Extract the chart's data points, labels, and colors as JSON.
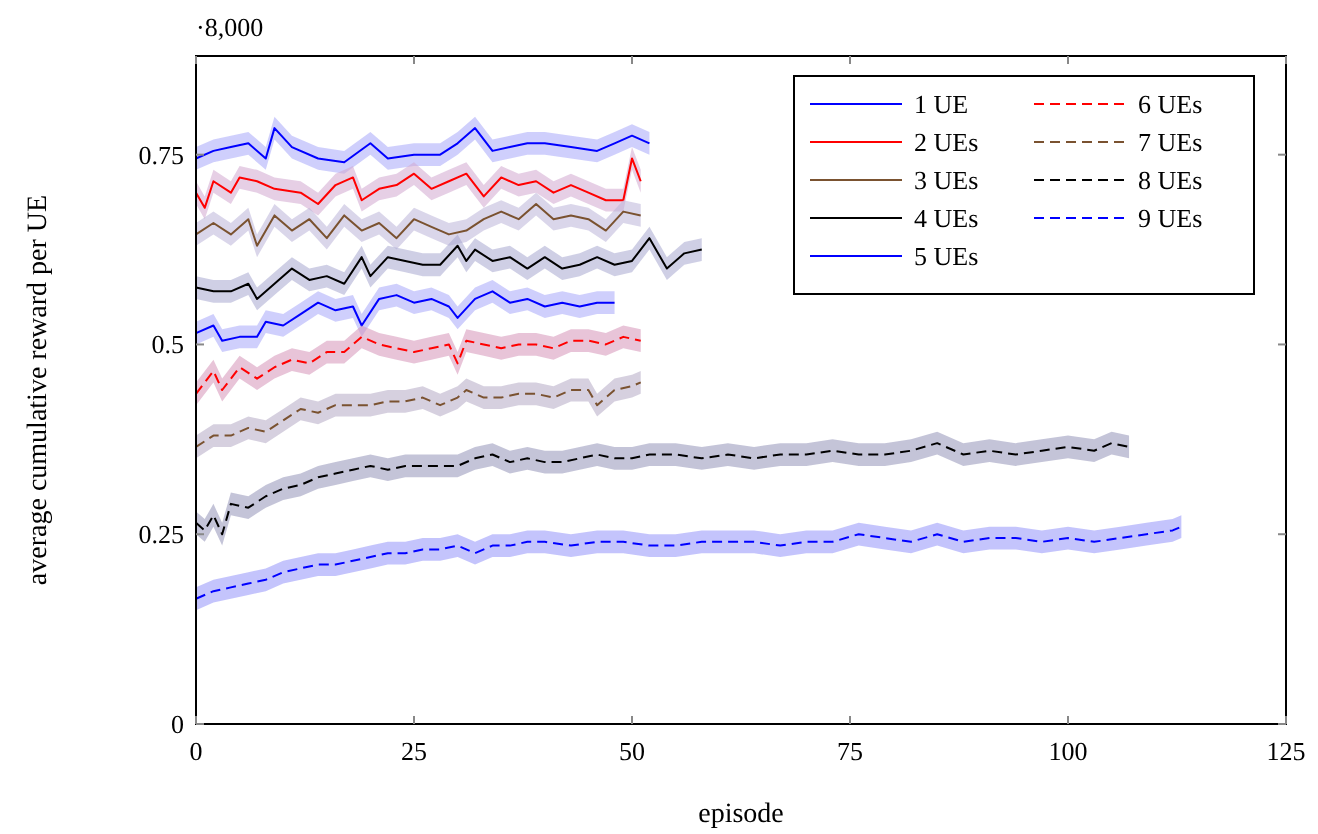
{
  "chart_data": {
    "type": "line",
    "xlabel": "episode",
    "ylabel": "average cumulative reward per UE",
    "annotations": [
      "·8,000"
    ],
    "xlim": [
      0,
      125
    ],
    "xticks": [
      0,
      25,
      50,
      75,
      100,
      125
    ],
    "ylim": [
      0,
      0.88
    ],
    "yticks": [
      0,
      0.25,
      0.5,
      0.75
    ],
    "legend": "top right",
    "series": [
      {
        "name": "1 UE",
        "color": "#0000ff",
        "line_style": "solid",
        "x": [
          0,
          2,
          4,
          6,
          8,
          9,
          11,
          14,
          17,
          20,
          22,
          25,
          28,
          30,
          32,
          34,
          36,
          38,
          40,
          43,
          46,
          48,
          50,
          52
        ],
        "values": [
          0.745,
          0.755,
          0.76,
          0.765,
          0.745,
          0.785,
          0.76,
          0.745,
          0.74,
          0.765,
          0.745,
          0.75,
          0.75,
          0.765,
          0.785,
          0.755,
          0.76,
          0.765,
          0.765,
          0.76,
          0.755,
          0.765,
          0.775,
          0.765
        ],
        "lower": [
          0.73,
          0.74,
          0.745,
          0.75,
          0.73,
          0.77,
          0.745,
          0.73,
          0.725,
          0.75,
          0.73,
          0.735,
          0.735,
          0.75,
          0.77,
          0.74,
          0.745,
          0.75,
          0.75,
          0.745,
          0.74,
          0.75,
          0.76,
          0.75
        ],
        "upper": [
          0.76,
          0.77,
          0.775,
          0.78,
          0.76,
          0.8,
          0.775,
          0.76,
          0.755,
          0.78,
          0.76,
          0.765,
          0.765,
          0.78,
          0.8,
          0.77,
          0.775,
          0.78,
          0.78,
          0.775,
          0.77,
          0.78,
          0.79,
          0.78
        ]
      },
      {
        "name": "2 UEs",
        "color": "#ff0000",
        "line_style": "solid",
        "x": [
          0,
          1,
          2,
          4,
          5,
          7,
          9,
          12,
          14,
          16,
          18,
          19,
          21,
          23,
          25,
          27,
          29,
          31,
          33,
          35,
          37,
          39,
          41,
          43,
          45,
          47,
          49,
          50,
          51
        ],
        "values": [
          0.7,
          0.68,
          0.715,
          0.7,
          0.72,
          0.715,
          0.705,
          0.7,
          0.685,
          0.71,
          0.72,
          0.69,
          0.705,
          0.71,
          0.725,
          0.705,
          0.715,
          0.725,
          0.695,
          0.72,
          0.71,
          0.715,
          0.7,
          0.71,
          0.7,
          0.69,
          0.69,
          0.745,
          0.715
        ],
        "lower": [
          0.685,
          0.665,
          0.7,
          0.685,
          0.705,
          0.7,
          0.69,
          0.685,
          0.67,
          0.695,
          0.705,
          0.675,
          0.69,
          0.695,
          0.71,
          0.69,
          0.7,
          0.71,
          0.68,
          0.705,
          0.695,
          0.7,
          0.685,
          0.695,
          0.685,
          0.675,
          0.675,
          0.73,
          0.7
        ],
        "upper": [
          0.715,
          0.695,
          0.73,
          0.715,
          0.735,
          0.73,
          0.72,
          0.715,
          0.7,
          0.725,
          0.735,
          0.705,
          0.72,
          0.725,
          0.74,
          0.72,
          0.73,
          0.74,
          0.71,
          0.735,
          0.725,
          0.73,
          0.715,
          0.725,
          0.715,
          0.705,
          0.705,
          0.76,
          0.73
        ]
      },
      {
        "name": "3 UEs",
        "color": "#7a5230",
        "line_style": "solid",
        "x": [
          0,
          2,
          4,
          6,
          7,
          9,
          11,
          13,
          15,
          17,
          19,
          21,
          23,
          25,
          27,
          29,
          31,
          33,
          35,
          37,
          39,
          41,
          43,
          45,
          47,
          49,
          51
        ],
        "values": [
          0.645,
          0.66,
          0.645,
          0.665,
          0.63,
          0.67,
          0.65,
          0.665,
          0.64,
          0.67,
          0.65,
          0.66,
          0.64,
          0.665,
          0.655,
          0.645,
          0.65,
          0.665,
          0.675,
          0.665,
          0.685,
          0.665,
          0.67,
          0.665,
          0.65,
          0.675,
          0.67
        ],
        "lower": [
          0.63,
          0.645,
          0.63,
          0.65,
          0.615,
          0.655,
          0.635,
          0.65,
          0.625,
          0.655,
          0.635,
          0.645,
          0.625,
          0.65,
          0.64,
          0.63,
          0.635,
          0.65,
          0.66,
          0.65,
          0.67,
          0.65,
          0.655,
          0.65,
          0.635,
          0.66,
          0.655
        ],
        "upper": [
          0.66,
          0.675,
          0.66,
          0.68,
          0.645,
          0.685,
          0.665,
          0.68,
          0.655,
          0.685,
          0.665,
          0.675,
          0.655,
          0.68,
          0.67,
          0.66,
          0.665,
          0.68,
          0.69,
          0.68,
          0.7,
          0.68,
          0.685,
          0.68,
          0.665,
          0.69,
          0.685
        ]
      },
      {
        "name": "4 UEs",
        "color": "#000000",
        "line_style": "solid",
        "x": [
          0,
          2,
          4,
          6,
          7,
          9,
          11,
          13,
          15,
          17,
          19,
          20,
          22,
          24,
          26,
          28,
          30,
          31,
          32,
          34,
          36,
          38,
          40,
          42,
          44,
          46,
          48,
          50,
          52,
          54,
          56,
          58
        ],
        "values": [
          0.575,
          0.57,
          0.57,
          0.58,
          0.56,
          0.58,
          0.6,
          0.585,
          0.59,
          0.58,
          0.615,
          0.59,
          0.615,
          0.61,
          0.605,
          0.605,
          0.63,
          0.61,
          0.625,
          0.61,
          0.615,
          0.6,
          0.615,
          0.6,
          0.605,
          0.615,
          0.605,
          0.61,
          0.64,
          0.6,
          0.62,
          0.625
        ],
        "lower": [
          0.56,
          0.555,
          0.555,
          0.565,
          0.545,
          0.565,
          0.585,
          0.57,
          0.575,
          0.565,
          0.6,
          0.575,
          0.6,
          0.595,
          0.59,
          0.59,
          0.615,
          0.595,
          0.61,
          0.595,
          0.6,
          0.585,
          0.6,
          0.585,
          0.59,
          0.6,
          0.59,
          0.595,
          0.625,
          0.585,
          0.605,
          0.61
        ],
        "upper": [
          0.59,
          0.585,
          0.585,
          0.595,
          0.575,
          0.595,
          0.615,
          0.6,
          0.605,
          0.595,
          0.63,
          0.605,
          0.63,
          0.625,
          0.62,
          0.62,
          0.645,
          0.625,
          0.64,
          0.625,
          0.63,
          0.615,
          0.63,
          0.615,
          0.62,
          0.63,
          0.62,
          0.625,
          0.655,
          0.615,
          0.635,
          0.64
        ]
      },
      {
        "name": "5 UEs",
        "color": "#0000ff",
        "line_style": "solid",
        "x": [
          0,
          2,
          3,
          5,
          7,
          8,
          10,
          12,
          14,
          16,
          18,
          19,
          21,
          23,
          25,
          27,
          29,
          30,
          32,
          34,
          36,
          38,
          40,
          42,
          44,
          46,
          48
        ],
        "values": [
          0.515,
          0.525,
          0.505,
          0.51,
          0.51,
          0.53,
          0.525,
          0.54,
          0.555,
          0.545,
          0.55,
          0.525,
          0.56,
          0.565,
          0.555,
          0.56,
          0.55,
          0.535,
          0.56,
          0.57,
          0.555,
          0.56,
          0.55,
          0.555,
          0.55,
          0.555,
          0.555
        ],
        "lower": [
          0.5,
          0.51,
          0.49,
          0.495,
          0.495,
          0.515,
          0.51,
          0.525,
          0.54,
          0.53,
          0.535,
          0.51,
          0.545,
          0.55,
          0.54,
          0.545,
          0.535,
          0.52,
          0.545,
          0.555,
          0.54,
          0.545,
          0.535,
          0.54,
          0.535,
          0.54,
          0.54
        ],
        "upper": [
          0.53,
          0.54,
          0.52,
          0.525,
          0.525,
          0.545,
          0.54,
          0.555,
          0.57,
          0.56,
          0.565,
          0.54,
          0.575,
          0.58,
          0.57,
          0.575,
          0.565,
          0.55,
          0.575,
          0.585,
          0.57,
          0.575,
          0.565,
          0.57,
          0.565,
          0.57,
          0.57
        ]
      },
      {
        "name": "6 UEs",
        "color": "#ff0000",
        "line_style": "dashed",
        "x": [
          0,
          2,
          3,
          5,
          7,
          9,
          11,
          13,
          15,
          17,
          19,
          21,
          23,
          25,
          27,
          29,
          30,
          31,
          33,
          35,
          37,
          39,
          41,
          43,
          45,
          47,
          49,
          51
        ],
        "values": [
          0.435,
          0.465,
          0.44,
          0.47,
          0.455,
          0.47,
          0.48,
          0.475,
          0.49,
          0.49,
          0.51,
          0.5,
          0.495,
          0.49,
          0.495,
          0.5,
          0.475,
          0.505,
          0.5,
          0.495,
          0.5,
          0.5,
          0.495,
          0.505,
          0.505,
          0.5,
          0.51,
          0.505
        ],
        "lower": [
          0.42,
          0.45,
          0.425,
          0.455,
          0.44,
          0.455,
          0.465,
          0.46,
          0.475,
          0.475,
          0.495,
          0.485,
          0.48,
          0.475,
          0.48,
          0.485,
          0.46,
          0.49,
          0.485,
          0.48,
          0.485,
          0.485,
          0.48,
          0.49,
          0.49,
          0.485,
          0.495,
          0.49
        ],
        "upper": [
          0.45,
          0.48,
          0.455,
          0.485,
          0.47,
          0.485,
          0.495,
          0.49,
          0.505,
          0.505,
          0.525,
          0.515,
          0.51,
          0.505,
          0.51,
          0.515,
          0.49,
          0.52,
          0.515,
          0.51,
          0.515,
          0.515,
          0.51,
          0.52,
          0.52,
          0.515,
          0.525,
          0.52
        ]
      },
      {
        "name": "7 UEs",
        "color": "#7a5230",
        "line_style": "dashed",
        "x": [
          0,
          2,
          4,
          6,
          8,
          10,
          12,
          14,
          16,
          18,
          20,
          22,
          24,
          26,
          28,
          30,
          31,
          33,
          35,
          37,
          39,
          41,
          43,
          45,
          46,
          48,
          50,
          51
        ],
        "values": [
          0.365,
          0.38,
          0.38,
          0.39,
          0.385,
          0.4,
          0.415,
          0.41,
          0.42,
          0.42,
          0.42,
          0.425,
          0.425,
          0.43,
          0.42,
          0.43,
          0.44,
          0.43,
          0.43,
          0.435,
          0.435,
          0.43,
          0.44,
          0.44,
          0.42,
          0.44,
          0.445,
          0.45
        ],
        "lower": [
          0.35,
          0.365,
          0.365,
          0.375,
          0.37,
          0.385,
          0.4,
          0.395,
          0.405,
          0.405,
          0.405,
          0.41,
          0.41,
          0.415,
          0.405,
          0.415,
          0.425,
          0.415,
          0.415,
          0.42,
          0.42,
          0.415,
          0.425,
          0.425,
          0.405,
          0.425,
          0.43,
          0.435
        ],
        "upper": [
          0.38,
          0.395,
          0.395,
          0.405,
          0.4,
          0.415,
          0.43,
          0.425,
          0.435,
          0.435,
          0.435,
          0.44,
          0.44,
          0.445,
          0.435,
          0.445,
          0.455,
          0.445,
          0.445,
          0.45,
          0.45,
          0.445,
          0.455,
          0.455,
          0.435,
          0.455,
          0.46,
          0.465
        ]
      },
      {
        "name": "8 UEs",
        "color": "#000000",
        "line_style": "dashed",
        "x": [
          0,
          1,
          2,
          3,
          4,
          6,
          8,
          10,
          12,
          14,
          16,
          18,
          20,
          22,
          24,
          26,
          28,
          30,
          32,
          34,
          36,
          38,
          40,
          42,
          44,
          46,
          48,
          50,
          52,
          55,
          58,
          61,
          64,
          67,
          70,
          73,
          76,
          79,
          82,
          85,
          88,
          91,
          94,
          97,
          100,
          103,
          105,
          107
        ],
        "values": [
          0.265,
          0.255,
          0.275,
          0.25,
          0.29,
          0.285,
          0.3,
          0.31,
          0.315,
          0.325,
          0.33,
          0.335,
          0.34,
          0.335,
          0.34,
          0.34,
          0.34,
          0.34,
          0.35,
          0.355,
          0.345,
          0.35,
          0.345,
          0.345,
          0.35,
          0.355,
          0.35,
          0.35,
          0.355,
          0.355,
          0.35,
          0.355,
          0.35,
          0.355,
          0.355,
          0.36,
          0.355,
          0.355,
          0.36,
          0.37,
          0.355,
          0.36,
          0.355,
          0.36,
          0.365,
          0.36,
          0.37,
          0.365
        ],
        "lower": [
          0.25,
          0.24,
          0.26,
          0.235,
          0.275,
          0.27,
          0.285,
          0.295,
          0.3,
          0.31,
          0.315,
          0.32,
          0.325,
          0.32,
          0.325,
          0.325,
          0.325,
          0.325,
          0.335,
          0.34,
          0.33,
          0.335,
          0.33,
          0.33,
          0.335,
          0.34,
          0.335,
          0.335,
          0.34,
          0.34,
          0.335,
          0.34,
          0.335,
          0.34,
          0.34,
          0.345,
          0.34,
          0.34,
          0.345,
          0.355,
          0.34,
          0.345,
          0.34,
          0.345,
          0.35,
          0.345,
          0.355,
          0.35
        ],
        "upper": [
          0.28,
          0.27,
          0.29,
          0.265,
          0.305,
          0.3,
          0.315,
          0.325,
          0.33,
          0.34,
          0.345,
          0.35,
          0.355,
          0.35,
          0.355,
          0.355,
          0.355,
          0.355,
          0.365,
          0.37,
          0.36,
          0.365,
          0.36,
          0.36,
          0.365,
          0.37,
          0.365,
          0.365,
          0.37,
          0.37,
          0.365,
          0.37,
          0.365,
          0.37,
          0.37,
          0.375,
          0.37,
          0.37,
          0.375,
          0.385,
          0.37,
          0.375,
          0.37,
          0.375,
          0.38,
          0.375,
          0.385,
          0.38
        ]
      },
      {
        "name": "9 UEs",
        "color": "#0000ff",
        "line_style": "dashed",
        "x": [
          0,
          2,
          4,
          6,
          8,
          10,
          12,
          14,
          16,
          18,
          20,
          22,
          24,
          26,
          28,
          30,
          32,
          34,
          36,
          38,
          40,
          43,
          46,
          49,
          52,
          55,
          58,
          61,
          64,
          67,
          70,
          73,
          76,
          79,
          82,
          85,
          88,
          91,
          94,
          97,
          100,
          103,
          106,
          109,
          112,
          113
        ],
        "values": [
          0.165,
          0.175,
          0.18,
          0.185,
          0.19,
          0.2,
          0.205,
          0.21,
          0.21,
          0.215,
          0.22,
          0.225,
          0.225,
          0.23,
          0.23,
          0.235,
          0.225,
          0.235,
          0.235,
          0.24,
          0.24,
          0.235,
          0.24,
          0.24,
          0.235,
          0.235,
          0.24,
          0.24,
          0.24,
          0.235,
          0.24,
          0.24,
          0.25,
          0.245,
          0.24,
          0.25,
          0.24,
          0.245,
          0.245,
          0.24,
          0.245,
          0.24,
          0.245,
          0.25,
          0.255,
          0.26
        ],
        "lower": [
          0.15,
          0.16,
          0.165,
          0.17,
          0.175,
          0.185,
          0.19,
          0.195,
          0.195,
          0.2,
          0.205,
          0.21,
          0.21,
          0.215,
          0.215,
          0.22,
          0.21,
          0.22,
          0.22,
          0.225,
          0.225,
          0.22,
          0.225,
          0.225,
          0.22,
          0.22,
          0.225,
          0.225,
          0.225,
          0.22,
          0.225,
          0.225,
          0.235,
          0.23,
          0.225,
          0.235,
          0.225,
          0.23,
          0.23,
          0.225,
          0.23,
          0.225,
          0.23,
          0.235,
          0.24,
          0.245
        ],
        "upper": [
          0.18,
          0.19,
          0.195,
          0.2,
          0.205,
          0.215,
          0.22,
          0.225,
          0.225,
          0.23,
          0.235,
          0.24,
          0.24,
          0.245,
          0.245,
          0.25,
          0.24,
          0.25,
          0.25,
          0.255,
          0.255,
          0.25,
          0.255,
          0.255,
          0.25,
          0.25,
          0.255,
          0.255,
          0.255,
          0.25,
          0.255,
          0.255,
          0.265,
          0.26,
          0.255,
          0.265,
          0.255,
          0.26,
          0.26,
          0.255,
          0.26,
          0.255,
          0.26,
          0.265,
          0.27,
          0.275
        ]
      }
    ]
  }
}
